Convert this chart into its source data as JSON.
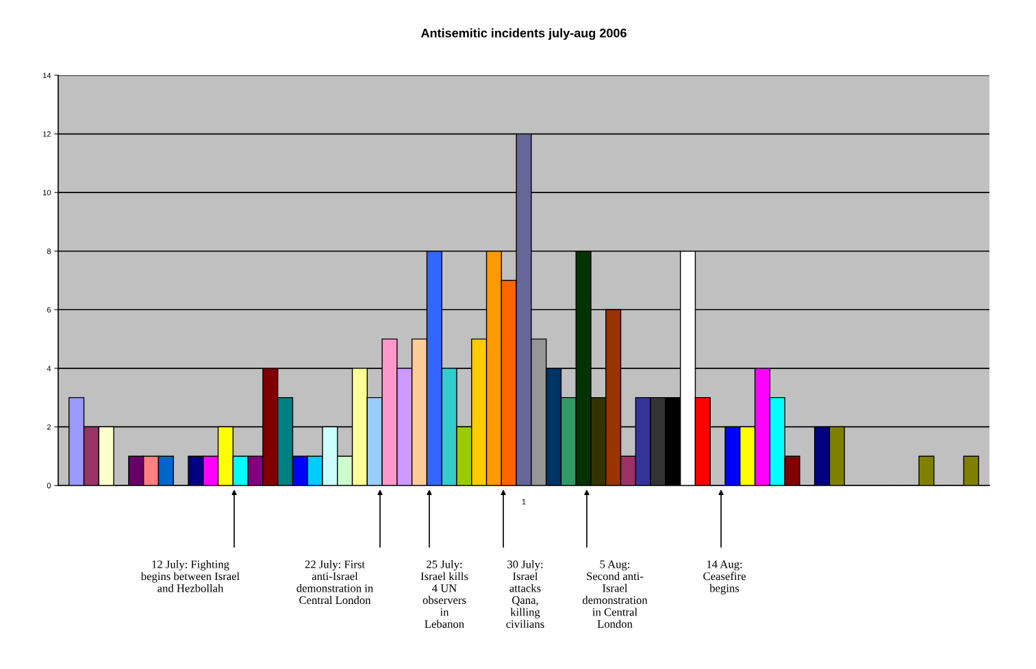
{
  "chart_data": {
    "type": "bar",
    "title": "Antisemitic incidents july-aug 2006",
    "categories": [
      "1"
    ],
    "ylim": [
      0,
      14
    ],
    "yticks": [
      0,
      2,
      4,
      6,
      8,
      10,
      12,
      14
    ],
    "grid": "y",
    "legend": false,
    "series": [
      {
        "color": "#9999ff",
        "values": [
          3
        ]
      },
      {
        "color": "#993366",
        "values": [
          2
        ]
      },
      {
        "color": "#ffffcc",
        "values": [
          2
        ]
      },
      {
        "values": [
          0
        ]
      },
      {
        "color": "#660066",
        "values": [
          1
        ]
      },
      {
        "color": "#ff8080",
        "values": [
          1
        ]
      },
      {
        "color": "#0066cc",
        "values": [
          1
        ]
      },
      {
        "values": [
          0
        ]
      },
      {
        "color": "#000080",
        "values": [
          1
        ]
      },
      {
        "color": "#ff00ff",
        "values": [
          1
        ]
      },
      {
        "color": "#ffff00",
        "values": [
          2
        ]
      },
      {
        "color": "#00ffff",
        "values": [
          1
        ]
      },
      {
        "color": "#800080",
        "values": [
          1
        ]
      },
      {
        "color": "#800000",
        "values": [
          4
        ]
      },
      {
        "color": "#008080",
        "values": [
          3
        ]
      },
      {
        "color": "#0000ff",
        "values": [
          1
        ]
      },
      {
        "color": "#00ccff",
        "values": [
          1
        ]
      },
      {
        "color": "#ccffff",
        "values": [
          2
        ]
      },
      {
        "color": "#ccffcc",
        "values": [
          1
        ]
      },
      {
        "color": "#ffff99",
        "values": [
          4
        ]
      },
      {
        "color": "#99ccff",
        "values": [
          3
        ]
      },
      {
        "color": "#ff99cc",
        "values": [
          5
        ]
      },
      {
        "color": "#cc99ff",
        "values": [
          4
        ]
      },
      {
        "color": "#ffcc99",
        "values": [
          5
        ]
      },
      {
        "color": "#3366ff",
        "values": [
          8
        ]
      },
      {
        "color": "#33cccc",
        "values": [
          4
        ]
      },
      {
        "color": "#99cc00",
        "values": [
          2
        ]
      },
      {
        "color": "#ffcc00",
        "values": [
          5
        ]
      },
      {
        "color": "#ff9900",
        "values": [
          8
        ]
      },
      {
        "color": "#ff6600",
        "values": [
          7
        ]
      },
      {
        "color": "#666699",
        "values": [
          12
        ]
      },
      {
        "color": "#969696",
        "values": [
          5
        ]
      },
      {
        "color": "#003366",
        "values": [
          4
        ]
      },
      {
        "color": "#339966",
        "values": [
          3
        ]
      },
      {
        "color": "#003300",
        "values": [
          8
        ]
      },
      {
        "color": "#333300",
        "values": [
          3
        ]
      },
      {
        "color": "#993300",
        "values": [
          6
        ]
      },
      {
        "color": "#993366",
        "values": [
          1
        ]
      },
      {
        "color": "#333399",
        "values": [
          3
        ]
      },
      {
        "color": "#333333",
        "values": [
          3
        ]
      },
      {
        "color": "#000000",
        "values": [
          3
        ]
      },
      {
        "color": "#ffffff",
        "values": [
          8
        ]
      },
      {
        "color": "#ff0000",
        "values": [
          3
        ]
      },
      {
        "values": [
          0
        ]
      },
      {
        "color": "#0000ff",
        "values": [
          2
        ]
      },
      {
        "color": "#ffff00",
        "values": [
          2
        ]
      },
      {
        "color": "#ff00ff",
        "values": [
          4
        ]
      },
      {
        "color": "#00ffff",
        "values": [
          3
        ]
      },
      {
        "color": "#800000",
        "values": [
          1
        ]
      },
      {
        "values": [
          0
        ]
      },
      {
        "color": "#000080",
        "values": [
          2
        ]
      },
      {
        "color": "#808000",
        "values": [
          2
        ]
      },
      {
        "values": [
          0
        ]
      },
      {
        "values": [
          0
        ]
      },
      {
        "values": [
          0
        ]
      },
      {
        "values": [
          0
        ]
      },
      {
        "values": [
          0
        ]
      },
      {
        "color": "#808000",
        "values": [
          1
        ]
      },
      {
        "values": [
          0
        ]
      },
      {
        "values": [
          0
        ]
      },
      {
        "color": "#808000",
        "values": [
          1
        ]
      }
    ],
    "annotations": [
      "12 July: Fighting\nbegins between Israel\nand Hezbollah",
      "22 July: First\nanti-Israel\ndemonstration in\nCentral London",
      "25 July:\nIsrael kills\n4 UN\nobservers\nin\nLebanon",
      "30 July:\nIsrael\nattacks\nQana,\nkilling\ncivilians",
      "5 Aug:\nSecond anti-\nIsrael\ndemonstration\nin Central\nLondon",
      "14 Aug:\nCeasefire\nbegins"
    ]
  }
}
